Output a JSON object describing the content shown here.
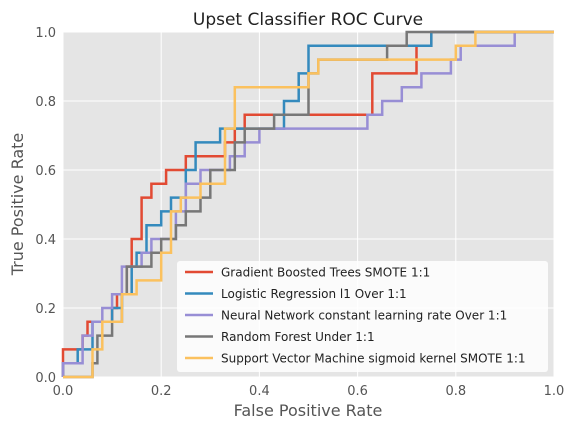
{
  "chart_data": {
    "type": "line",
    "title": "Upset Classifier ROC Curve",
    "xlabel": "False Positive Rate",
    "ylabel": "True Positive Rate",
    "xlim": [
      0.0,
      1.0
    ],
    "ylim": [
      0.0,
      1.0
    ],
    "xticks": [
      "0.0",
      "0.2",
      "0.4",
      "0.6",
      "0.8",
      "1.0"
    ],
    "yticks": [
      "0.0",
      "0.2",
      "0.4",
      "0.6",
      "0.8",
      "1.0"
    ],
    "grid": true,
    "legend_position": "lower-right",
    "series": [
      {
        "name": "Gradient Boosted Trees SMOTE 1:1",
        "color": "#E24A33",
        "x": [
          0,
          0,
          0.04,
          0.04,
          0.05,
          0.05,
          0.1,
          0.1,
          0.11,
          0.11,
          0.13,
          0.13,
          0.14,
          0.14,
          0.16,
          0.16,
          0.18,
          0.18,
          0.21,
          0.21,
          0.25,
          0.25,
          0.33,
          0.33,
          0.35,
          0.35,
          0.37,
          0.37,
          0.4,
          0.4,
          0.5,
          0.5,
          0.63,
          0.63,
          0.72,
          0.72,
          0.75,
          0.75,
          1.0
        ],
        "y": [
          0,
          0.08,
          0.08,
          0.12,
          0.12,
          0.16,
          0.16,
          0.2,
          0.2,
          0.24,
          0.24,
          0.32,
          0.32,
          0.4,
          0.4,
          0.52,
          0.52,
          0.56,
          0.56,
          0.6,
          0.6,
          0.64,
          0.64,
          0.68,
          0.68,
          0.72,
          0.72,
          0.76,
          0.76,
          0.76,
          0.76,
          0.76,
          0.76,
          0.88,
          0.88,
          0.96,
          0.96,
          1.0,
          1.0
        ]
      },
      {
        "name": "Logistic Regression l1 Over 1:1",
        "color": "#348ABD",
        "x": [
          0,
          0,
          0.03,
          0.03,
          0.06,
          0.06,
          0.1,
          0.1,
          0.12,
          0.12,
          0.14,
          0.14,
          0.15,
          0.15,
          0.17,
          0.17,
          0.2,
          0.2,
          0.22,
          0.22,
          0.25,
          0.25,
          0.27,
          0.27,
          0.32,
          0.32,
          0.35,
          0.35,
          0.45,
          0.45,
          0.48,
          0.48,
          0.5,
          0.5,
          0.56,
          0.56,
          0.66,
          0.66,
          0.7,
          0.7,
          0.75,
          0.75,
          1.0
        ],
        "y": [
          0,
          0.04,
          0.04,
          0.08,
          0.08,
          0.16,
          0.16,
          0.2,
          0.2,
          0.24,
          0.24,
          0.32,
          0.32,
          0.36,
          0.36,
          0.44,
          0.44,
          0.48,
          0.48,
          0.52,
          0.52,
          0.6,
          0.6,
          0.68,
          0.68,
          0.72,
          0.72,
          0.72,
          0.72,
          0.8,
          0.8,
          0.88,
          0.88,
          0.96,
          0.96,
          0.96,
          0.96,
          0.96,
          0.96,
          0.96,
          0.96,
          1.0,
          1.0
        ]
      },
      {
        "name": "Neural Network constant learning rate Over 1:1",
        "color": "#988ED5",
        "x": [
          0,
          0,
          0.04,
          0.04,
          0.06,
          0.06,
          0.08,
          0.08,
          0.1,
          0.1,
          0.12,
          0.12,
          0.16,
          0.16,
          0.18,
          0.18,
          0.23,
          0.23,
          0.25,
          0.25,
          0.28,
          0.28,
          0.34,
          0.34,
          0.37,
          0.37,
          0.4,
          0.4,
          0.62,
          0.62,
          0.65,
          0.65,
          0.69,
          0.69,
          0.73,
          0.73,
          0.79,
          0.79,
          0.81,
          0.81,
          0.92,
          0.92,
          1.0
        ],
        "y": [
          0,
          0.04,
          0.04,
          0.12,
          0.12,
          0.16,
          0.16,
          0.2,
          0.2,
          0.24,
          0.24,
          0.32,
          0.32,
          0.36,
          0.36,
          0.4,
          0.4,
          0.48,
          0.48,
          0.56,
          0.56,
          0.6,
          0.6,
          0.64,
          0.64,
          0.68,
          0.68,
          0.72,
          0.72,
          0.76,
          0.76,
          0.8,
          0.8,
          0.84,
          0.84,
          0.88,
          0.88,
          0.92,
          0.92,
          0.96,
          0.96,
          1.0,
          1.0
        ]
      },
      {
        "name": "Random Forest Under 1:1",
        "color": "#777777",
        "x": [
          0,
          0,
          0.06,
          0.06,
          0.07,
          0.07,
          0.1,
          0.1,
          0.12,
          0.12,
          0.13,
          0.13,
          0.18,
          0.18,
          0.2,
          0.2,
          0.23,
          0.23,
          0.25,
          0.25,
          0.28,
          0.28,
          0.3,
          0.3,
          0.35,
          0.35,
          0.37,
          0.37,
          0.43,
          0.43,
          0.5,
          0.5,
          0.52,
          0.52,
          0.66,
          0.66,
          0.7,
          0.7,
          0.72,
          0.72,
          1.0
        ],
        "y": [
          0,
          0.0,
          0.0,
          0.04,
          0.04,
          0.12,
          0.12,
          0.16,
          0.16,
          0.24,
          0.24,
          0.32,
          0.32,
          0.36,
          0.36,
          0.4,
          0.4,
          0.44,
          0.44,
          0.48,
          0.48,
          0.52,
          0.52,
          0.6,
          0.6,
          0.68,
          0.68,
          0.72,
          0.72,
          0.76,
          0.76,
          0.88,
          0.88,
          0.92,
          0.92,
          0.96,
          0.96,
          1.0,
          1.0,
          1.0,
          1.0
        ]
      },
      {
        "name": "Support Vector Machine sigmoid kernel SMOTE 1:1",
        "color": "#FBC15E",
        "x": [
          0,
          0,
          0.06,
          0.06,
          0.08,
          0.08,
          0.12,
          0.12,
          0.15,
          0.15,
          0.2,
          0.2,
          0.22,
          0.22,
          0.24,
          0.24,
          0.28,
          0.28,
          0.33,
          0.33,
          0.35,
          0.35,
          0.36,
          0.36,
          0.5,
          0.5,
          0.52,
          0.52,
          0.8,
          0.8,
          0.84,
          0.84,
          1.0
        ],
        "y": [
          0,
          0.0,
          0.0,
          0.08,
          0.08,
          0.16,
          0.16,
          0.24,
          0.24,
          0.28,
          0.28,
          0.36,
          0.36,
          0.48,
          0.48,
          0.52,
          0.52,
          0.56,
          0.56,
          0.72,
          0.72,
          0.84,
          0.84,
          0.84,
          0.84,
          0.88,
          0.88,
          0.92,
          0.92,
          0.96,
          0.96,
          1.0,
          1.0
        ]
      }
    ]
  },
  "style": {
    "plot_background": "#E5E5E5",
    "grid_color": "#FFFFFF",
    "legend_background": "#FFFFFF"
  }
}
